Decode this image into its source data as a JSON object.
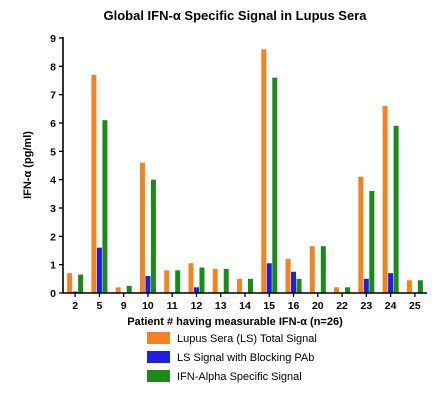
{
  "chart_data": {
    "type": "bar",
    "title": "Global IFN-α Specific Signal in Lupus Sera",
    "xlabel": "Patient # having measurable IFN-α (n=26)",
    "ylabel": "IFN-α  (pg/ml)",
    "ylim": [
      0,
      9
    ],
    "yticks": [
      "0",
      "1",
      "2",
      "3",
      "4",
      "5",
      "6",
      "7",
      "8",
      "9"
    ],
    "categories": [
      "2",
      "5",
      "9",
      "10",
      "11",
      "12",
      "13",
      "14",
      "15",
      "16",
      "20",
      "22",
      "23",
      "24",
      "25"
    ],
    "grid": false,
    "legend_position": "bottom",
    "series": [
      {
        "name": "Lupus Sera (LS) Total Signal",
        "color": "#F58220",
        "values": [
          0.7,
          7.7,
          0.2,
          4.6,
          0.8,
          1.05,
          0.85,
          0.5,
          8.6,
          1.2,
          1.65,
          0.2,
          4.1,
          6.6,
          0.45
        ]
      },
      {
        "name": "LS Signal with Blocking PAb",
        "color": "#1F1FE0",
        "values": [
          0.05,
          1.6,
          0.0,
          0.6,
          0.0,
          0.2,
          0.0,
          0.0,
          1.05,
          0.75,
          0.0,
          0.0,
          0.5,
          0.7,
          0.0
        ]
      },
      {
        "name": "IFN-Alpha Specific Signal",
        "color": "#1A8A1A",
        "values": [
          0.65,
          6.1,
          0.25,
          4.0,
          0.8,
          0.9,
          0.85,
          0.5,
          7.6,
          0.5,
          1.65,
          0.2,
          3.6,
          5.9,
          0.45
        ]
      }
    ]
  }
}
